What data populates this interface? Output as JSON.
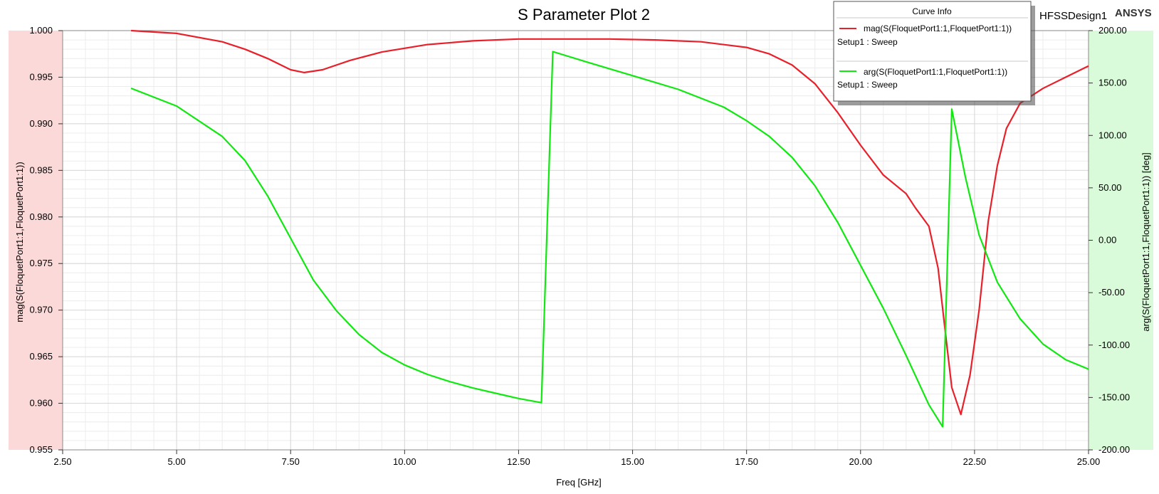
{
  "header": {
    "design_name": "HFSSDesign1",
    "brand": "ANSYS"
  },
  "legend": {
    "title": "Curve Info",
    "entries": [
      {
        "label": "mag(S(FloquetPort1:1,FloquetPort1:1))",
        "sub": "Setup1 : Sweep",
        "color": "#e8202a"
      },
      {
        "label": "arg(S(FloquetPort1:1,FloquetPort1:1))",
        "sub": "Setup1 : Sweep",
        "color": "#10e810"
      }
    ]
  },
  "colors": {
    "left_band": "#fbd9d9",
    "right_band": "#d9fbd9",
    "grid": "#d8d8d8",
    "mag": "#e8202a",
    "arg": "#10e810"
  },
  "chart_data": {
    "type": "line",
    "title": "S Parameter Plot 2",
    "xlabel": "Freq [GHz]",
    "ylabel_left": "mag(S(FloquetPort1:1,FloquetPort1:1))",
    "ylabel_right": "arg(S(FloquetPort1:1,FloquetPort1:1)) [deg]",
    "xlim": [
      2.5,
      25.0
    ],
    "ylim_left": [
      0.955,
      1.0
    ],
    "ylim_right": [
      -200,
      200
    ],
    "grid": true,
    "legend_position": "top-right",
    "x_ticks": [
      "2.50",
      "5.00",
      "7.50",
      "10.00",
      "12.50",
      "15.00",
      "17.50",
      "20.00",
      "22.50",
      "25.00"
    ],
    "y_ticks_left": [
      "0.955",
      "0.960",
      "0.965",
      "0.970",
      "0.975",
      "0.980",
      "0.985",
      "0.990",
      "0.995",
      "1.000"
    ],
    "y_ticks_right": [
      "-200.00",
      "-150.00",
      "-100.00",
      "-50.00",
      "0.00",
      "50.00",
      "100.00",
      "150.00",
      "200.00"
    ],
    "series": [
      {
        "name": "mag(S(FloquetPort1:1,FloquetPort1:1))",
        "axis": "left",
        "x": [
          4.0,
          5.0,
          6.0,
          6.5,
          7.0,
          7.5,
          7.8,
          8.2,
          8.8,
          9.5,
          10.5,
          11.5,
          12.5,
          13.5,
          14.5,
          15.5,
          16.5,
          17.5,
          18.0,
          18.5,
          19.0,
          19.5,
          20.0,
          20.5,
          21.0,
          21.2,
          21.5,
          21.7,
          21.85,
          22.0,
          22.2,
          22.4,
          22.6,
          22.8,
          23.0,
          23.2,
          23.5,
          24.0,
          24.5,
          25.0
        ],
        "y": [
          1.0,
          0.9997,
          0.9988,
          0.998,
          0.997,
          0.9958,
          0.9955,
          0.9958,
          0.9968,
          0.9977,
          0.9985,
          0.9989,
          0.9991,
          0.9991,
          0.9991,
          0.999,
          0.9988,
          0.9982,
          0.9975,
          0.9963,
          0.9943,
          0.9912,
          0.9877,
          0.9845,
          0.9825,
          0.981,
          0.979,
          0.9745,
          0.968,
          0.9617,
          0.9588,
          0.963,
          0.97,
          0.9795,
          0.9855,
          0.9895,
          0.9922,
          0.9938,
          0.995,
          0.9962
        ]
      },
      {
        "name": "arg(S(FloquetPort1:1,FloquetPort1:1))",
        "axis": "right",
        "x": [
          4.0,
          5.0,
          6.0,
          6.5,
          7.0,
          7.5,
          8.0,
          8.5,
          9.0,
          9.5,
          10.0,
          10.5,
          11.0,
          11.5,
          12.0,
          12.5,
          13.0,
          13.25,
          14.0,
          15.0,
          16.0,
          17.0,
          17.5,
          18.0,
          18.5,
          19.0,
          19.5,
          20.0,
          20.5,
          21.0,
          21.5,
          21.8,
          22.0,
          22.3,
          22.6,
          23.0,
          23.5,
          24.0,
          24.5,
          25.0
        ],
        "y": [
          145,
          128,
          99,
          76,
          42,
          2,
          -38,
          -67,
          -90,
          -107,
          -119,
          -128,
          -135,
          -141,
          -146,
          -151,
          -155,
          180,
          170,
          157,
          144,
          127,
          114,
          99,
          79,
          52,
          17,
          -24,
          -65,
          -110,
          -157,
          -178,
          125,
          60,
          5,
          -40,
          -75,
          -99,
          -114,
          -123
        ]
      }
    ]
  }
}
